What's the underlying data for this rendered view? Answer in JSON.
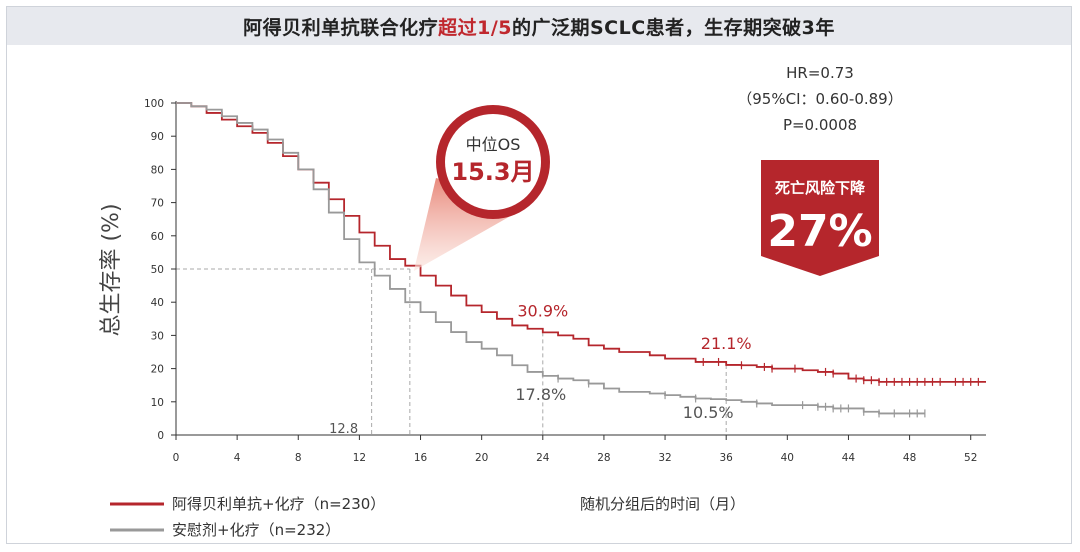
{
  "title": {
    "part1": "阿得贝利单抗联合化疗",
    "highlight": "超过1/5",
    "part2": "的广泛期SCLC患者，生存期突破3年"
  },
  "stats": {
    "hr": "HR=0.73",
    "ci": "（95%CI：0.60-0.89）",
    "p": "P=0.0008"
  },
  "median_badge": {
    "label": "中位OS",
    "value": "15.3月"
  },
  "risk_badge": {
    "label": "死亡风险下降",
    "value": "27%"
  },
  "colors": {
    "treatment": "#b5262c",
    "placebo": "#999999",
    "accent": "#c0282e"
  },
  "chart_data": {
    "type": "line",
    "ylabel": "总生存率 (%)",
    "xlabel": "随机分组后的时间（月）",
    "xlim": [
      0,
      53
    ],
    "ylim": [
      0,
      100
    ],
    "xticks": [
      0,
      4,
      8,
      12,
      16,
      20,
      24,
      28,
      32,
      36,
      40,
      44,
      48,
      52
    ],
    "yticks": [
      0,
      10,
      20,
      30,
      40,
      50,
      60,
      70,
      80,
      90,
      100
    ],
    "series": [
      {
        "name": "阿得贝利单抗+化疗（n=230）",
        "color": "#b5262c",
        "x": [
          0,
          1,
          2,
          3,
          4,
          5,
          6,
          7,
          8,
          9,
          10,
          11,
          12,
          13,
          14,
          15,
          16,
          17,
          18,
          19,
          20,
          21,
          22,
          23,
          24,
          25,
          26,
          27,
          28,
          29,
          30,
          31,
          32,
          33,
          34,
          35,
          36,
          37,
          38,
          39,
          40,
          41,
          42,
          43,
          44,
          45,
          46,
          47,
          48,
          49,
          50,
          51,
          52,
          53
        ],
        "y": [
          100,
          99,
          97,
          95,
          93,
          91,
          88,
          84,
          80,
          76,
          71,
          66,
          61,
          57,
          53,
          51,
          48,
          45,
          42,
          39,
          37,
          35,
          33,
          32,
          30.9,
          30,
          29,
          27,
          26,
          25,
          25,
          24,
          23,
          23,
          22,
          22,
          21.1,
          21,
          20.5,
          20,
          20,
          19.5,
          19,
          18.5,
          17,
          16.5,
          16,
          16,
          16,
          16,
          16,
          16,
          16,
          16
        ],
        "censor_x": [
          34.5,
          35.5,
          37,
          38.5,
          39,
          40.5,
          42.5,
          43,
          44.5,
          45,
          45.5,
          46,
          46.5,
          47,
          47.5,
          48,
          48.5,
          49,
          49.5,
          50,
          51,
          51.5,
          52,
          52.5
        ]
      },
      {
        "name": "安慰剂+化疗（n=232）",
        "color": "#999999",
        "x": [
          0,
          1,
          2,
          3,
          4,
          5,
          6,
          7,
          8,
          9,
          10,
          11,
          12,
          13,
          14,
          15,
          16,
          17,
          18,
          19,
          20,
          21,
          22,
          23,
          24,
          25,
          26,
          27,
          28,
          29,
          30,
          31,
          32,
          33,
          34,
          35,
          36,
          37,
          38,
          39,
          40,
          41,
          42,
          43,
          44,
          45,
          46,
          47,
          48,
          49
        ],
        "y": [
          100,
          99,
          98,
          96,
          94,
          92,
          89,
          85,
          80,
          74,
          67,
          59,
          52,
          48,
          44,
          40,
          37,
          34,
          31,
          28,
          26,
          24,
          21,
          19,
          17.8,
          17,
          16.5,
          15.5,
          14,
          13,
          13,
          12.5,
          12,
          11.5,
          11,
          10.8,
          10.5,
          10,
          9.5,
          9,
          9,
          9,
          8.5,
          8,
          8,
          7,
          6.5,
          6.5,
          6.5,
          6.5
        ],
        "censor_x": [
          25,
          27,
          32,
          34,
          38,
          41,
          42,
          42.5,
          43,
          43.5,
          44,
          45,
          46,
          47,
          48,
          48.5,
          49
        ]
      }
    ],
    "annotations": [
      {
        "text": "30.9%",
        "x": 24,
        "y": 30.9,
        "color": "#b5262c"
      },
      {
        "text": "21.1%",
        "x": 36,
        "y": 21.1,
        "color": "#b5262c"
      },
      {
        "text": "17.8%",
        "x": 24,
        "y": 17.8,
        "color": "#555555"
      },
      {
        "text": "10.5%",
        "x": 36,
        "y": 10.5,
        "color": "#555555"
      },
      {
        "text": "12.8",
        "x": 12.8,
        "y": 0,
        "color": "#555555"
      }
    ],
    "medians": {
      "placebo": 12.8,
      "treatment": 15.3,
      "survival": 50
    }
  }
}
